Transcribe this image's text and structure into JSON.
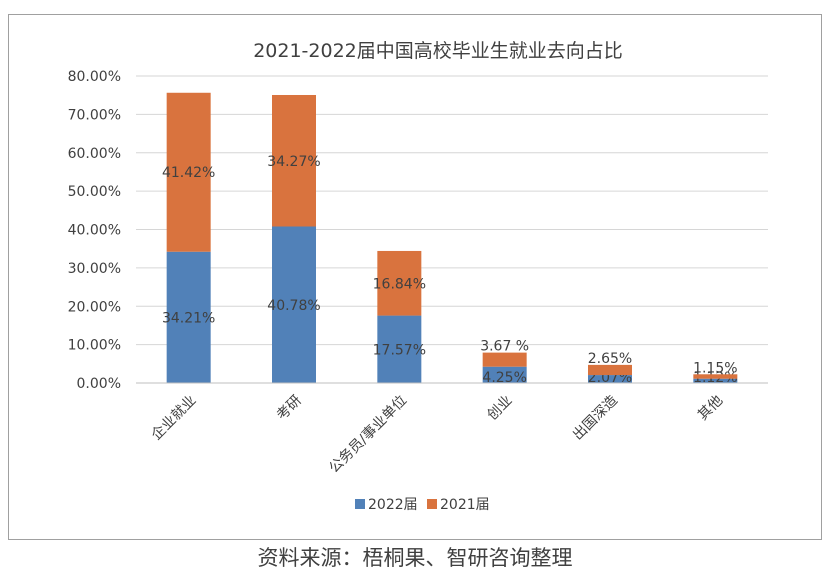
{
  "chart_data": {
    "type": "bar",
    "stacked": true,
    "title": "2021-2022届中国高校毕业生就业去向占比",
    "xlabel": "",
    "ylabel": "",
    "categories": [
      "企业就业",
      "考研",
      "公务员/事业单位",
      "创业",
      "出国深造",
      "其他"
    ],
    "series": [
      {
        "name": "2022届",
        "color": "#5181b8",
        "values": [
          34.21,
          40.78,
          17.57,
          4.25,
          2.07,
          1.12
        ],
        "labels": [
          "34.21%",
          "40.78%",
          "17.57%",
          "4.25%",
          "2.07%",
          "1.12%"
        ]
      },
      {
        "name": "2021届",
        "color": "#d9733e",
        "values": [
          41.42,
          34.27,
          16.84,
          3.67,
          2.65,
          1.15
        ],
        "labels": [
          "41.42%",
          "34.27%",
          "16.84%",
          "3.67 %",
          "2.65%",
          "1.15%"
        ]
      }
    ],
    "ylim": [
      0,
      80
    ],
    "yticks": [
      "0.00%",
      "10.00%",
      "20.00%",
      "30.00%",
      "40.00%",
      "50.00%",
      "60.00%",
      "70.00%",
      "80.00%"
    ],
    "grid": true,
    "legend_position": "bottom"
  },
  "source_note": "资料来源：梧桐果、智研咨询整理"
}
